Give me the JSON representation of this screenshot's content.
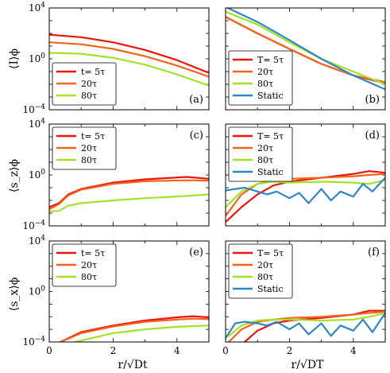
{
  "x_labels": [
    "r/√Dt",
    "r/√DT"
  ],
  "y_labels": [
    "⟨I⟩ϕ",
    "⟨s_z⟩ϕ",
    "⟨s_x⟩ϕ"
  ],
  "colors": {
    "t5": "#e8160c",
    "t20": "#f5631d",
    "t80": "#a3e227",
    "static": "#2f86c8"
  },
  "chart_data": [
    {
      "type": "line",
      "panel": "a",
      "yscale": "log",
      "xlim": [
        0,
        5
      ],
      "ylim": [
        0.0001,
        10000
      ],
      "yticklabels": [
        "10^4",
        "10^0",
        "10^-4"
      ],
      "xticklabels": [],
      "legend_position": "bottom-left",
      "panel_label": "(a)",
      "series": [
        {
          "name": "t= 5τ",
          "color": "#e8160c",
          "x": [
            0,
            1,
            2,
            3,
            4,
            5
          ],
          "y": [
            80,
            50,
            20,
            5,
            0.8,
            0.08
          ]
        },
        {
          "name": "20τ",
          "color": "#f5631d",
          "x": [
            0,
            1,
            2,
            3,
            4,
            5
          ],
          "y": [
            20,
            14,
            6,
            1.6,
            0.3,
            0.04
          ]
        },
        {
          "name": "80τ",
          "color": "#a3e227",
          "x": [
            0,
            1,
            2,
            3,
            4,
            5
          ],
          "y": [
            3,
            2.5,
            1.2,
            0.35,
            0.06,
            0.008
          ]
        }
      ]
    },
    {
      "type": "line",
      "panel": "b",
      "yscale": "log",
      "xlim": [
        0,
        5
      ],
      "ylim": [
        0.0001,
        10000
      ],
      "yticklabels": [],
      "xticklabels": [],
      "legend_position": "bottom-left",
      "panel_label": "(b)",
      "series": [
        {
          "name": "T= 5τ",
          "color": "#e8160c",
          "x": [
            0,
            1,
            2,
            3,
            4,
            5
          ],
          "y": [
            2000,
            100,
            6,
            0.4,
            0.05,
            0.012
          ]
        },
        {
          "name": "20τ",
          "color": "#f5631d",
          "x": [
            0,
            1,
            2,
            3,
            4,
            5
          ],
          "y": [
            2000,
            100,
            6,
            0.4,
            0.05,
            0.015
          ]
        },
        {
          "name": "80τ",
          "color": "#a3e227",
          "x": [
            0,
            1,
            2,
            3,
            4,
            5
          ],
          "y": [
            5000,
            500,
            20,
            1,
            0.1,
            0.01
          ]
        },
        {
          "name": "Static",
          "color": "#2f86c8",
          "x": [
            0,
            1,
            2,
            3,
            4,
            5
          ],
          "y": [
            12000,
            800,
            30,
            1,
            0.05,
            0.004
          ]
        }
      ]
    },
    {
      "type": "line",
      "panel": "c",
      "yscale": "log",
      "xlim": [
        0,
        5
      ],
      "ylim": [
        0.0001,
        10000
      ],
      "yticklabels": [
        "10^4",
        "10^0",
        "10^-4"
      ],
      "xticklabels": [],
      "legend_position": "top-left",
      "panel_label": "(c)",
      "series": [
        {
          "name": "t= 5τ",
          "color": "#e8160c",
          "x": [
            0,
            0.3,
            0.6,
            1,
            2,
            3,
            4.3,
            5
          ],
          "y": [
            0.003,
            0.006,
            0.03,
            0.08,
            0.25,
            0.45,
            0.7,
            0.5
          ]
        },
        {
          "name": "20τ",
          "color": "#f5631d",
          "x": [
            0,
            0.3,
            0.6,
            1,
            2,
            3,
            4.3,
            5
          ],
          "y": [
            0.002,
            0.005,
            0.025,
            0.07,
            0.2,
            0.32,
            0.38,
            0.36
          ]
        },
        {
          "name": "80τ",
          "color": "#a3e227",
          "x": [
            0,
            0.3,
            0.6,
            1,
            2,
            3,
            4,
            5
          ],
          "y": [
            0.0014,
            0.0015,
            0.004,
            0.006,
            0.01,
            0.015,
            0.02,
            0.03
          ]
        }
      ]
    },
    {
      "type": "line",
      "panel": "d",
      "yscale": "log",
      "xlim": [
        0,
        5
      ],
      "ylim": [
        0.0001,
        10000
      ],
      "yticklabels": [],
      "xticklabels": [],
      "legend_position": "top-left",
      "panel_label": "(d)",
      "series": [
        {
          "name": "T= 5τ",
          "color": "#e8160c",
          "x": [
            0,
            0.5,
            1,
            1.5,
            2,
            3,
            4,
            4.5,
            5
          ],
          "y": [
            0.0002,
            0.003,
            0.03,
            0.15,
            0.3,
            0.6,
            1.2,
            2,
            1.5
          ]
        },
        {
          "name": "20τ",
          "color": "#f5631d",
          "x": [
            0,
            0.5,
            1,
            1.5,
            2,
            3,
            4,
            4.5,
            5
          ],
          "y": [
            0.0006,
            0.03,
            0.2,
            0.4,
            0.5,
            0.6,
            0.8,
            1,
            1.2
          ]
        },
        {
          "name": "80τ",
          "color": "#a3e227",
          "x": [
            0,
            0.5,
            1,
            1.5,
            2,
            3,
            4,
            4.5,
            5
          ],
          "y": [
            0.003,
            0.05,
            0.2,
            0.3,
            0.25,
            0.3,
            0.25,
            0.2,
            0.4
          ]
        },
        {
          "name": "Static",
          "color": "#2f86c8",
          "x": [
            0,
            0.3,
            0.6,
            1,
            1.3,
            1.6,
            2,
            2.3,
            2.6,
            3,
            3.3,
            3.6,
            4,
            4.3,
            4.6,
            5
          ],
          "y": [
            0.06,
            0.08,
            0.1,
            0.05,
            0.03,
            0.05,
            0.015,
            0.04,
            0.006,
            0.08,
            0.01,
            0.05,
            0.02,
            0.2,
            0.05,
            0.6
          ]
        }
      ]
    },
    {
      "type": "line",
      "panel": "e",
      "yscale": "log",
      "xlim": [
        0,
        5
      ],
      "ylim": [
        0.0001,
        10000
      ],
      "yticklabels": [
        "10^4",
        "10^0",
        "10^-4"
      ],
      "xticklabels": [
        "0",
        "2",
        "4"
      ],
      "legend_position": "top-left",
      "panel_label": "(e)",
      "series": [
        {
          "name": "t= 5τ",
          "color": "#e8160c",
          "x": [
            0.35,
            1,
            2,
            3,
            4,
            4.5,
            5
          ],
          "y": [
            0.0001,
            0.0006,
            0.002,
            0.005,
            0.009,
            0.011,
            0.009
          ]
        },
        {
          "name": "20τ",
          "color": "#f5631d",
          "x": [
            0.35,
            1,
            2,
            3,
            4,
            4.5,
            5
          ],
          "y": [
            0.0001,
            0.0005,
            0.0017,
            0.004,
            0.006,
            0.007,
            0.0065
          ]
        },
        {
          "name": "80τ",
          "color": "#a3e227",
          "x": [
            0.8,
            2,
            3,
            4,
            5
          ],
          "y": [
            0.0001,
            0.0005,
            0.001,
            0.0016,
            0.002
          ]
        }
      ]
    },
    {
      "type": "line",
      "panel": "f",
      "yscale": "log",
      "xlim": [
        0,
        5
      ],
      "ylim": [
        0.0001,
        10000
      ],
      "yticklabels": [],
      "xticklabels": [
        "0",
        "2",
        "4"
      ],
      "legend_position": "top-left",
      "panel_label": "(f)",
      "series": [
        {
          "name": "T= 5τ",
          "color": "#e8160c",
          "x": [
            0.6,
            1,
            1.5,
            2,
            3,
            4,
            4.5,
            5
          ],
          "y": [
            0.0001,
            0.0008,
            0.003,
            0.005,
            0.008,
            0.015,
            0.03,
            0.03
          ]
        },
        {
          "name": "20τ",
          "color": "#f5631d",
          "x": [
            0.1,
            0.5,
            1,
            1.5,
            2,
            3,
            4,
            4.5,
            5
          ],
          "y": [
            0.0001,
            0.001,
            0.004,
            0.006,
            0.008,
            0.01,
            0.015,
            0.02,
            0.025
          ]
        },
        {
          "name": "80τ",
          "color": "#a3e227",
          "x": [
            0.1,
            0.5,
            1,
            1.5,
            2,
            3,
            4,
            4.5,
            5
          ],
          "y": [
            0.0003,
            0.002,
            0.005,
            0.006,
            0.006,
            0.005,
            0.006,
            0.01,
            0.02
          ]
        },
        {
          "name": "Static",
          "color": "#2f86c8",
          "x": [
            0,
            0.3,
            0.6,
            1,
            1.3,
            1.6,
            2,
            2.3,
            2.6,
            3,
            3.3,
            3.6,
            4,
            4.3,
            4.6,
            5
          ],
          "y": [
            0.0002,
            0.003,
            0.004,
            0.003,
            0.002,
            0.004,
            0.001,
            0.003,
            0.0004,
            0.003,
            0.0003,
            0.002,
            0.0008,
            0.006,
            0.0006,
            0.02
          ]
        }
      ]
    }
  ]
}
